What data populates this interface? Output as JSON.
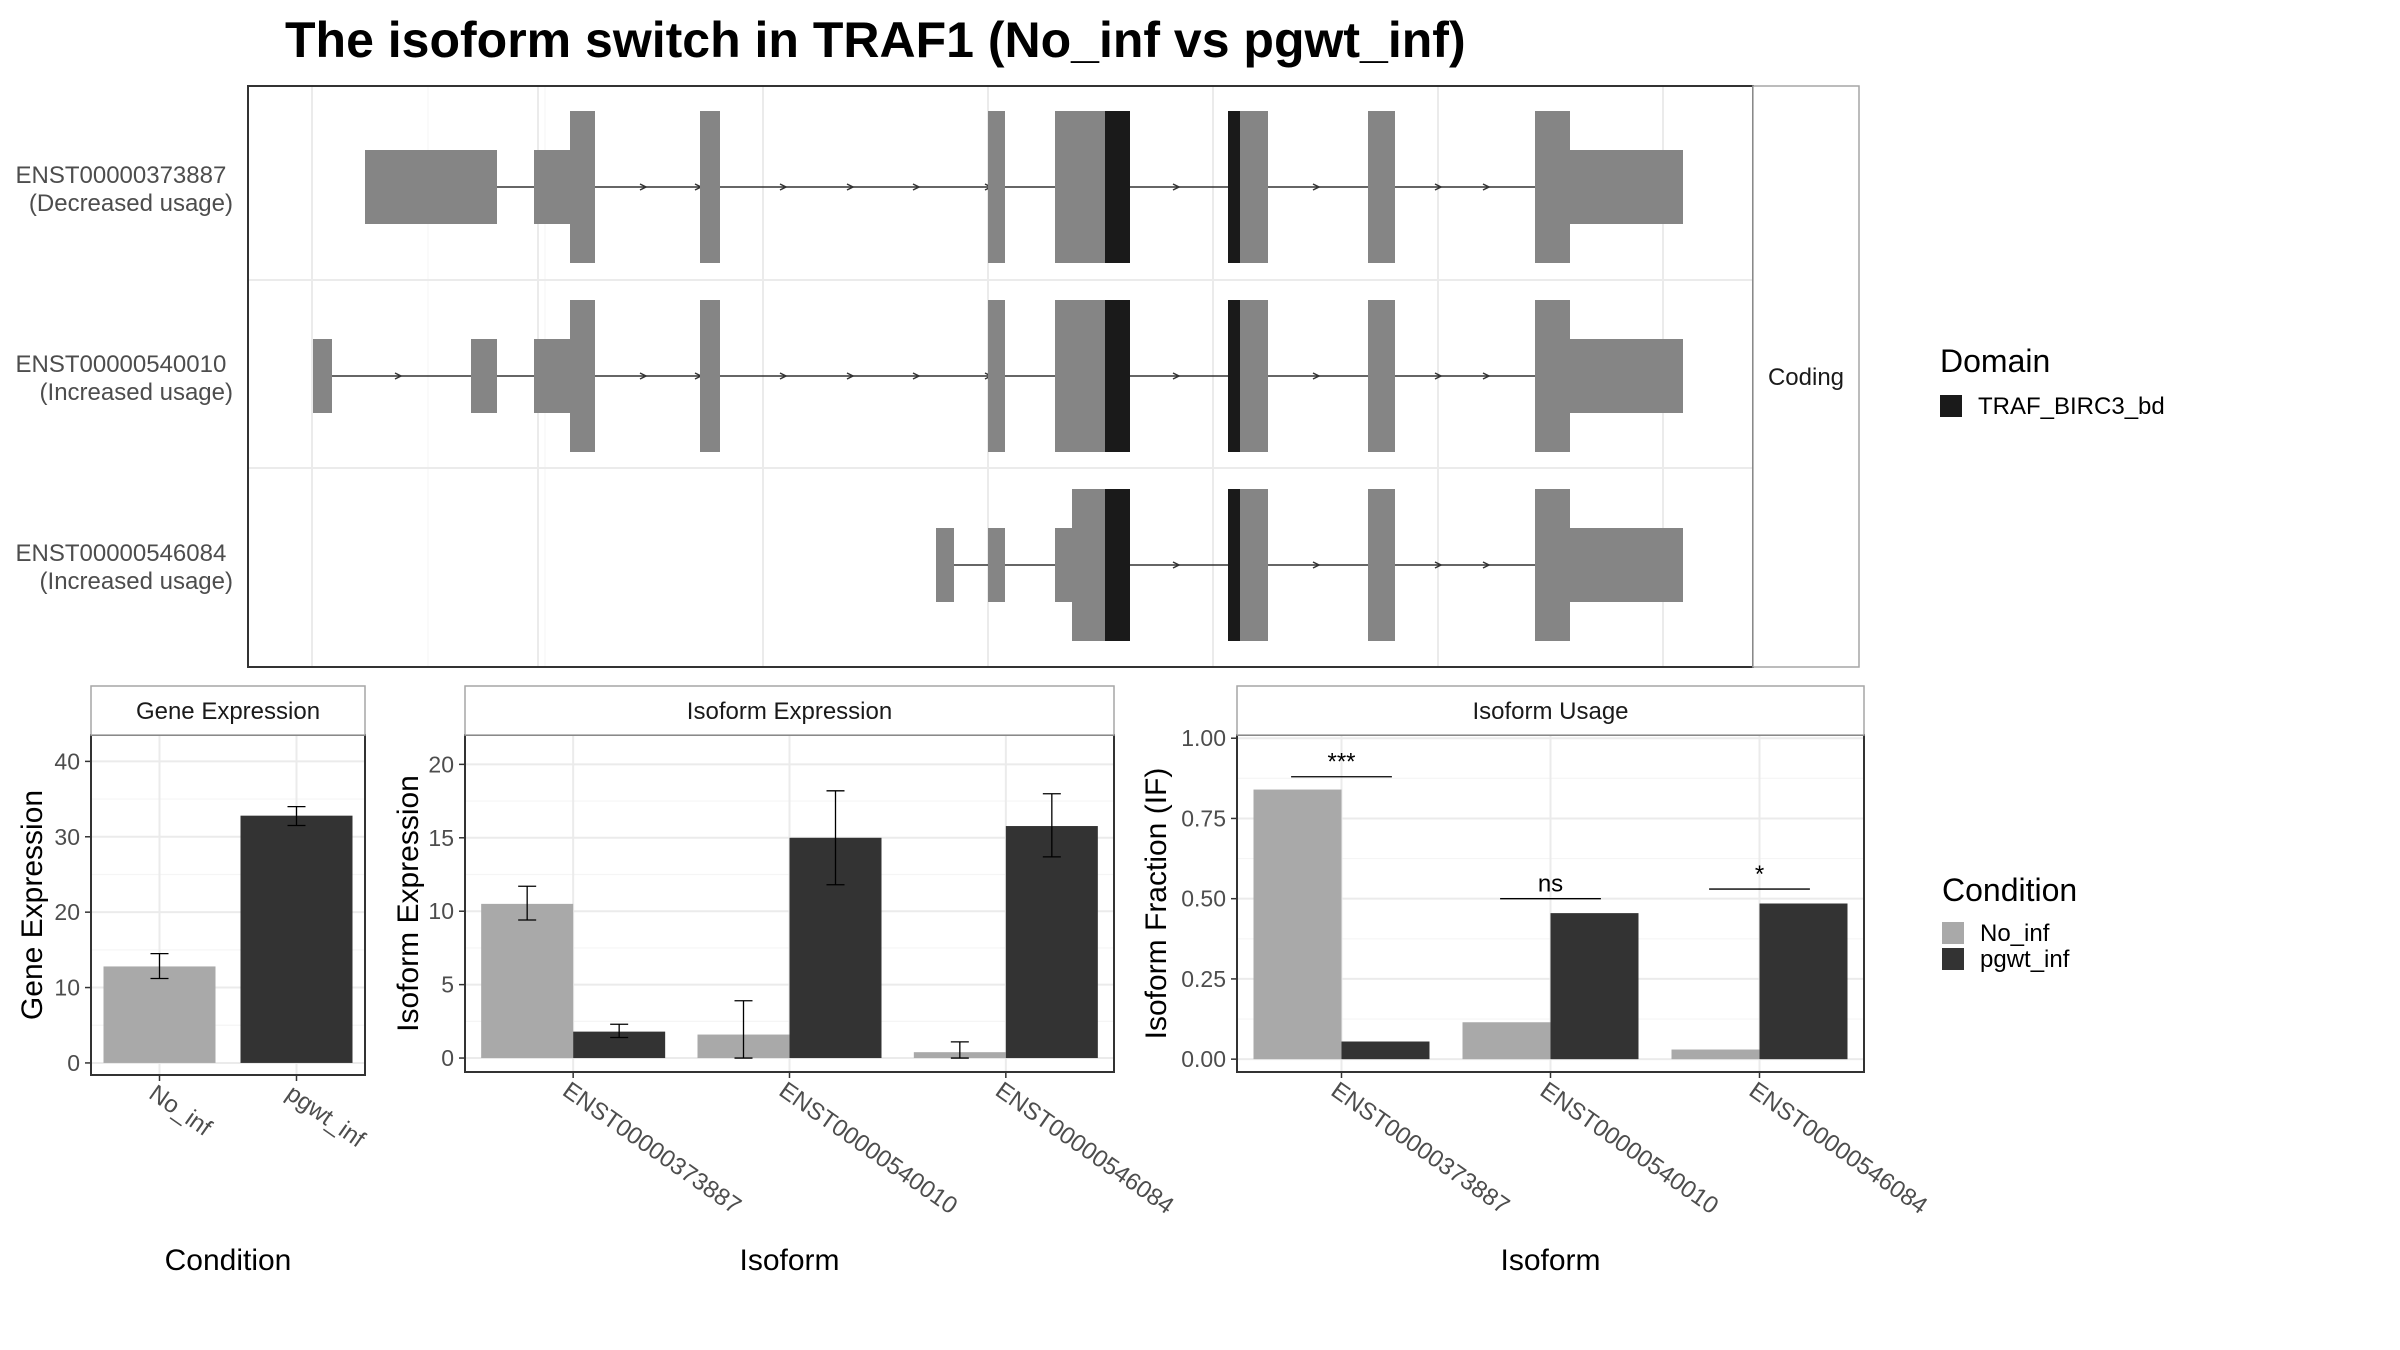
{
  "title": "The isoform switch in TRAF1 (No_inf vs pgwt_inf)",
  "colors": {
    "exon": "#858585",
    "domain": "#1a1a1a",
    "no_inf": "#a9a9a9",
    "pgwt_inf": "#333333",
    "grid": "#ebebeb",
    "frame": "#333333",
    "strip_border": "#a6a6a6"
  },
  "structure": {
    "strip_label": "Coding",
    "transcripts": [
      {
        "id": "ENST00000373887",
        "usage": "(Decreased usage)"
      },
      {
        "id": "ENST00000540010",
        "usage": "(Increased usage)"
      },
      {
        "id": "ENST00000546084",
        "usage": "(Increased usage)"
      }
    ]
  },
  "legends": {
    "domain": {
      "title": "Domain",
      "items": [
        {
          "label": "TRAF_BIRC3_bd",
          "color": "#1a1a1a"
        }
      ]
    },
    "condition": {
      "title": "Condition",
      "items": [
        {
          "label": "No_inf",
          "color": "#a9a9a9"
        },
        {
          "label": "pgwt_inf",
          "color": "#333333"
        }
      ]
    }
  },
  "chart_data": [
    {
      "type": "bar",
      "title": "Gene Expression",
      "xlabel": "Condition",
      "ylabel": "Gene Expression",
      "ylim": [
        -1.6,
        43.5
      ],
      "yticks": [
        0,
        10,
        20,
        30,
        40
      ],
      "ytick_labels": [
        "0",
        "10",
        "20",
        "30",
        "40"
      ],
      "categories": [
        "No_inf",
        "pgwt_inf"
      ],
      "series": [
        {
          "values": [
            12.8,
            32.8
          ],
          "lower": [
            11.2,
            31.5
          ],
          "upper": [
            14.5,
            34.0
          ]
        }
      ]
    },
    {
      "type": "bar",
      "title": "Isoform Expression",
      "xlabel": "Isoform",
      "ylabel": "Isoform Expression",
      "ylim": [
        -0.95,
        22.0
      ],
      "yticks": [
        0,
        5,
        10,
        15,
        20
      ],
      "ytick_labels": [
        "0",
        "5",
        "10",
        "15",
        "20"
      ],
      "categories": [
        "ENST00000373887",
        "ENST00000540010",
        "ENST00000546084"
      ],
      "series": [
        {
          "name": "No_inf",
          "values": [
            10.5,
            1.6,
            0.4
          ],
          "lower": [
            9.4,
            0.0,
            0.0
          ],
          "upper": [
            11.7,
            3.9,
            1.1
          ]
        },
        {
          "name": "pgwt_inf",
          "values": [
            1.8,
            15.0,
            15.8
          ],
          "lower": [
            1.4,
            11.8,
            13.7
          ],
          "upper": [
            2.3,
            18.2,
            18.0
          ]
        }
      ]
    },
    {
      "type": "bar",
      "title": "Isoform Usage",
      "xlabel": "Isoform",
      "ylabel": "Isoform Fraction (IF)",
      "ylim": [
        -0.04,
        1.01
      ],
      "yticks": [
        0,
        0.25,
        0.5,
        0.75,
        1.0
      ],
      "ytick_labels": [
        "0.00",
        "0.25",
        "0.50",
        "0.75",
        "1.00"
      ],
      "categories": [
        "ENST00000373887",
        "ENST00000540010",
        "ENST00000546084"
      ],
      "series": [
        {
          "name": "No_inf",
          "values": [
            0.84,
            0.115,
            0.03
          ]
        },
        {
          "name": "pgwt_inf",
          "values": [
            0.055,
            0.455,
            0.485
          ]
        }
      ],
      "significance": [
        {
          "category": "ENST00000373887",
          "label": "***",
          "y": 0.88
        },
        {
          "category": "ENST00000540010",
          "label": "ns",
          "y": 0.5
        },
        {
          "category": "ENST00000546084",
          "label": "*",
          "y": 0.53
        }
      ]
    }
  ]
}
